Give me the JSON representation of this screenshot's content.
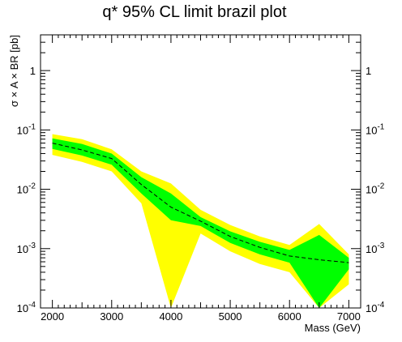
{
  "chart_data": {
    "type": "area",
    "title": "q* 95% CL limit brazil plot",
    "xlabel": "Mass (GeV)",
    "ylabel": "σ × A × BR [pb]",
    "xlim": [
      1800,
      7200
    ],
    "ylim": [
      0.0001,
      4
    ],
    "yscale": "log",
    "xticks": [
      2000,
      3000,
      4000,
      5000,
      6000,
      7000
    ],
    "yticks": [
      {
        "value": 0.0001,
        "base": "10",
        "exp": "-4"
      },
      {
        "value": 0.001,
        "base": "10",
        "exp": "-3"
      },
      {
        "value": 0.01,
        "base": "10",
        "exp": "-2"
      },
      {
        "value": 0.1,
        "base": "10",
        "exp": "-1"
      },
      {
        "value": 1,
        "base": "1",
        "exp": ""
      }
    ],
    "x": [
      2000,
      2500,
      3000,
      3500,
      4000,
      4500,
      5000,
      5500,
      6000,
      6500,
      7000
    ],
    "series": [
      {
        "role": "band-2sigma-up",
        "values": [
          0.085,
          0.07,
          0.047,
          0.02,
          0.0125,
          0.0045,
          0.0025,
          0.0016,
          0.00115,
          0.0026,
          0.0008
        ]
      },
      {
        "role": "band-2sigma-down",
        "values": [
          0.038,
          0.029,
          0.02,
          0.0058,
          0.0001,
          0.0018,
          0.0009,
          0.00055,
          0.0004,
          0.0001,
          0.00025
        ]
      },
      {
        "role": "band-1sigma-up",
        "values": [
          0.072,
          0.058,
          0.04,
          0.016,
          0.0085,
          0.0034,
          0.00195,
          0.0013,
          0.00095,
          0.0017,
          0.0007
        ]
      },
      {
        "role": "band-1sigma-down",
        "values": [
          0.048,
          0.037,
          0.026,
          0.0085,
          0.003,
          0.0024,
          0.00125,
          0.0008,
          0.00058,
          0.0001,
          0.00045
        ]
      },
      {
        "role": "expected",
        "values": [
          0.06,
          0.046,
          0.033,
          0.012,
          0.005,
          0.0029,
          0.0016,
          0.00105,
          0.00075,
          0.00065,
          0.00058
        ]
      }
    ],
    "colors": {
      "band2": "#ffff00",
      "band1": "#00ff00",
      "expected": "#000000",
      "frame": "#000000"
    },
    "grid": false,
    "legend": "none"
  }
}
